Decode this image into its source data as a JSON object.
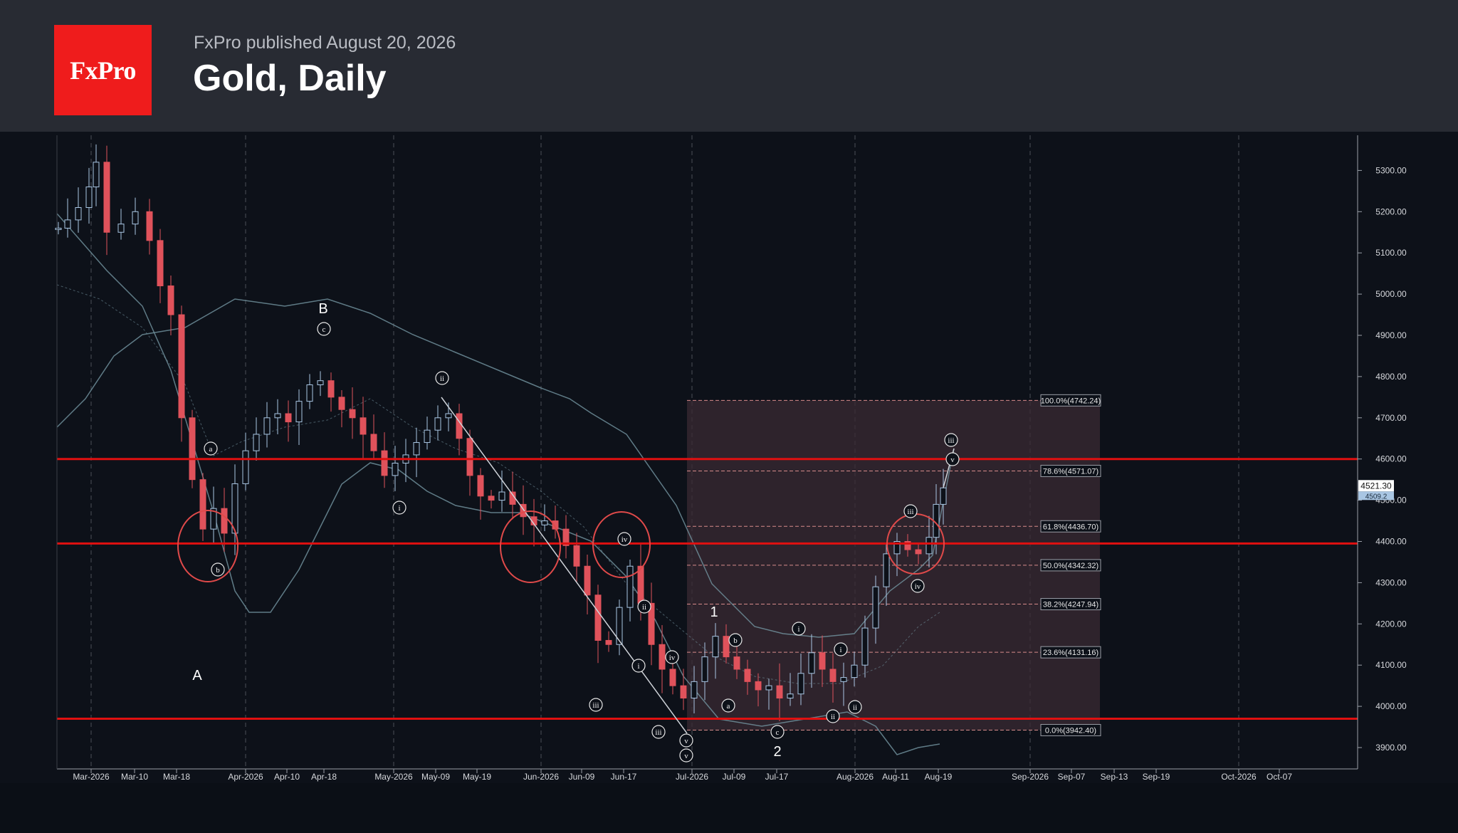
{
  "header": {
    "logo_text": "FxPro",
    "published": "FxPro published August 20, 2026",
    "title": "Gold, Daily"
  },
  "colors": {
    "background": "#0d1119",
    "header": "#282b33",
    "brand_red": "#ef1c1c",
    "bear_candle": "#e0525b",
    "bull_candle": "#a9c6e3",
    "bollinger": "#6f8e9a",
    "level_line": "#e01010",
    "fib_zone": "#3a2a33"
  },
  "chart_data": {
    "type": "candlestick",
    "y_axis": {
      "range": [
        3850,
        5380
      ],
      "ticks": [
        "3900.00",
        "4000.00",
        "4100.00",
        "4200.00",
        "4300.00",
        "4400.00",
        "4500.00",
        "4600.00",
        "4700.00",
        "4800.00",
        "4900.00",
        "5000.00",
        "5100.00",
        "5200.00",
        "5300.00"
      ],
      "current_price": "4521.30",
      "current_price_secondary": "4509.2"
    },
    "x_axis": {
      "ticks": [
        "Mar-2026",
        "Mar-10",
        "Mar-18",
        "Apr-2026",
        "Apr-10",
        "Apr-18",
        "May-2026",
        "May-09",
        "May-19",
        "Jun-2026",
        "Jun-09",
        "Jun-17",
        "Jul-2026",
        "Jul-09",
        "Jul-17",
        "Aug-2026",
        "Aug-11",
        "Aug-19",
        "Sep-2026",
        "Sep-07",
        "Sep-13",
        "Sep-19",
        "Oct-2026",
        "Oct-07"
      ]
    },
    "horizontal_levels": [
      4600,
      4395,
      3970
    ],
    "fibonacci": [
      {
        "label": "100.0%(4742.24)",
        "price": 4742.24
      },
      {
        "label": "78.6%(4571.07)",
        "price": 4571.07
      },
      {
        "label": "61.8%(4436.70)",
        "price": 4436.7
      },
      {
        "label": "50.0%(4342.32)",
        "price": 4342.32
      },
      {
        "label": "38.2%(4247.94)",
        "price": 4247.94
      },
      {
        "label": "23.6%(4131.16)",
        "price": 4131.16
      },
      {
        "label": "0.0%(3942.40)",
        "price": 3942.4
      }
    ],
    "wave_labels": [
      "A",
      "B",
      "1",
      "2",
      "a",
      "b",
      "c",
      "i",
      "ii",
      "iii",
      "iv",
      "v",
      "(i)",
      "(ii)",
      "(iii)",
      "(iv)",
      "(v)"
    ]
  }
}
